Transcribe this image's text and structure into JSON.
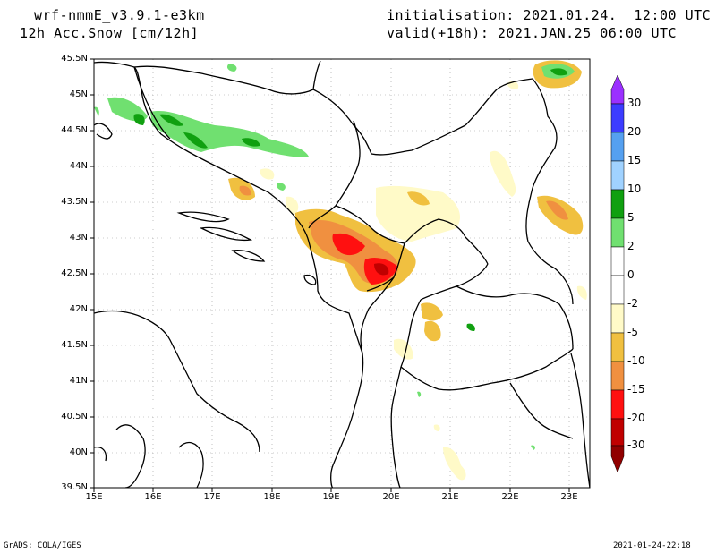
{
  "header": {
    "model": "wrf-nmmE_v3.9.1-e3km",
    "field": "12h Acc.Snow [cm/12h]",
    "init": "initialisation: 2021.01.24.  12:00 UTC",
    "valid": "valid(+18h): 2021.JAN.25 06:00 UTC"
  },
  "map": {
    "lat_labels": [
      "45.5N",
      "45N",
      "44.5N",
      "44N",
      "43.5N",
      "43N",
      "42.5N",
      "42N",
      "41.5N",
      "41N",
      "40.5N",
      "40N",
      "39.5N"
    ],
    "lon_labels": [
      "15E",
      "16E",
      "17E",
      "18E",
      "19E",
      "20E",
      "21E",
      "22E",
      "23E"
    ]
  },
  "colorbar": {
    "labels": [
      "30",
      "20",
      "15",
      "10",
      "5",
      "2",
      "0",
      "-2",
      "-5",
      "-10",
      "-15",
      "-20",
      "-30"
    ],
    "colors": [
      "#9b30ff",
      "#3c3cff",
      "#55a0f0",
      "#a0d2ff",
      "#10a010",
      "#70e070",
      "#ffffff",
      "#fffac8",
      "#f0c040",
      "#f09040",
      "#ff1010",
      "#c00000",
      "#900000"
    ]
  },
  "footer": {
    "left": "GrADS: COLA/IGES",
    "right": "2021-01-24-22:18"
  }
}
